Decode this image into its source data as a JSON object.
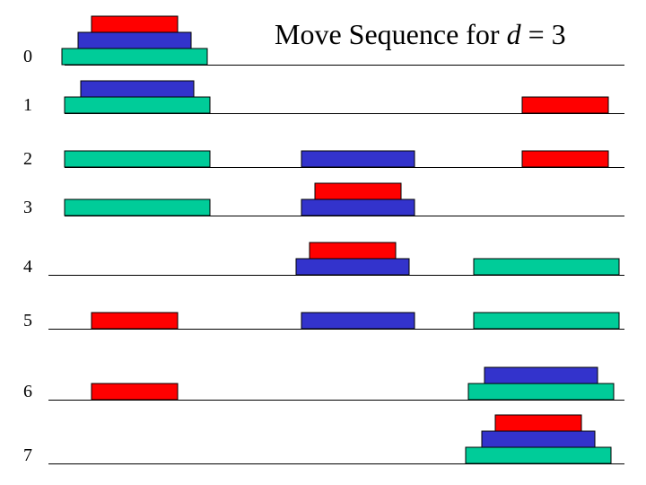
{
  "title": {
    "prefix": "Move Sequence for ",
    "variable": "d",
    "suffix": " = 3"
  },
  "colors": {
    "red": "#ff0000",
    "blue": "#3333cc",
    "green": "#00cc99",
    "line": "#000000"
  },
  "disk_sizes": {
    "red": "small",
    "blue": "medium",
    "green": "large"
  },
  "pegs": [
    "peg-1",
    "peg-2",
    "peg-3"
  ],
  "steps": [
    {
      "label": "0",
      "pegs": [
        [
          "green",
          "blue",
          "red"
        ],
        [],
        []
      ]
    },
    {
      "label": "1",
      "pegs": [
        [
          "green",
          "blue"
        ],
        [],
        [
          "red"
        ]
      ]
    },
    {
      "label": "2",
      "pegs": [
        [
          "green"
        ],
        [
          "blue"
        ],
        [
          "red"
        ]
      ]
    },
    {
      "label": "3",
      "pegs": [
        [
          "green"
        ],
        [
          "blue",
          "red"
        ],
        []
      ]
    },
    {
      "label": "4",
      "pegs": [
        [],
        [
          "blue",
          "red"
        ],
        [
          "green"
        ]
      ]
    },
    {
      "label": "5",
      "pegs": [
        [
          "red"
        ],
        [
          "blue"
        ],
        [
          "green"
        ]
      ]
    },
    {
      "label": "6",
      "pegs": [
        [
          "red"
        ],
        [],
        [
          "green",
          "blue"
        ]
      ]
    },
    {
      "label": "7",
      "pegs": [
        [],
        [],
        [
          "green",
          "blue",
          "red"
        ]
      ]
    }
  ]
}
